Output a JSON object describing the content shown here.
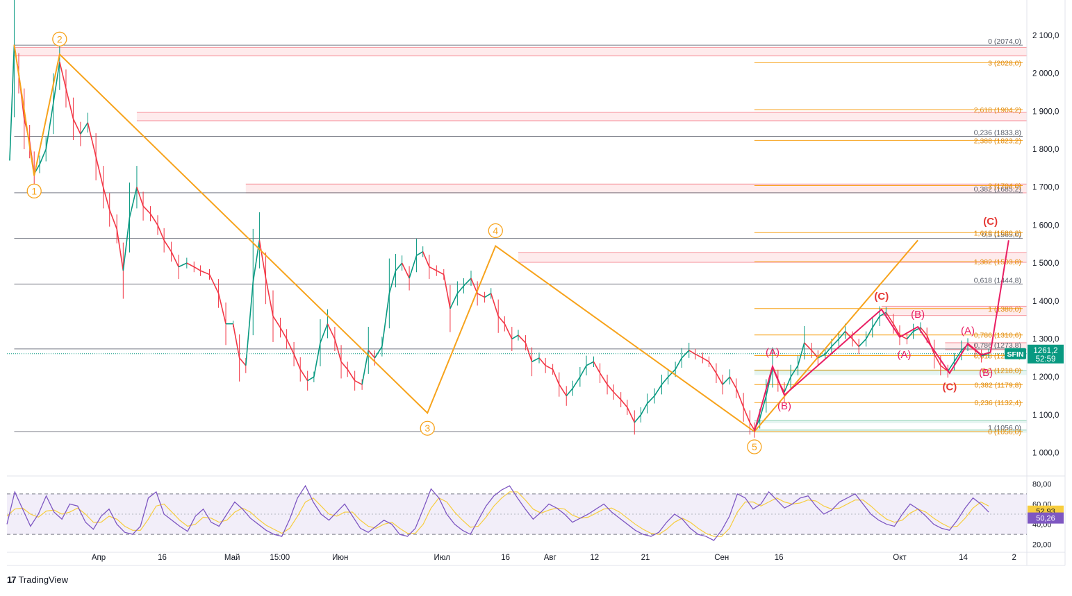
{
  "chart_data": {
    "type": "line",
    "symbol": "SFIN",
    "last_price": "1261,2",
    "countdown": "52:59",
    "price_axis": {
      "ylim": [
        950,
        2120
      ],
      "ticks": [
        "2 100,0",
        "2 000,0",
        "1 900,0",
        "1 800,0",
        "1 700,0",
        "1 600,0",
        "1 500,0",
        "1 400,0",
        "1 300,0",
        "1 200,0",
        "1 100,0",
        "1 000,0"
      ],
      "tick_values": [
        2100,
        2000,
        1900,
        1800,
        1700,
        1600,
        1500,
        1400,
        1300,
        1200,
        1100,
        1000
      ]
    },
    "time_axis": {
      "range": [
        0,
        100
      ],
      "labels": [
        "Апр",
        "16",
        "Май",
        "15:00",
        "Июн",
        "Июл",
        "16",
        "Авг",
        "12",
        "21",
        "Сен",
        "16",
        "Окт",
        "14",
        "2"
      ],
      "positions": [
        14,
        24,
        35,
        42.5,
        52,
        68,
        78,
        85,
        92,
        100,
        112,
        121,
        140,
        150,
        158
      ]
    },
    "elliott_primary": {
      "color": "#f7a31c",
      "points": [
        [
          0.5,
          2075
        ],
        [
          2.7,
          1730
        ],
        [
          5.5,
          2050
        ],
        [
          46,
          1105
        ],
        [
          53.5,
          1545
        ],
        [
          82,
          1056
        ],
        [
          100,
          1560
        ]
      ],
      "labels": [
        {
          "text": "1",
          "t": 2.7,
          "p": 1730,
          "pos": "below"
        },
        {
          "text": "2",
          "t": 5.5,
          "p": 2050,
          "pos": "above"
        },
        {
          "text": "3",
          "t": 46,
          "p": 1105,
          "pos": "below"
        },
        {
          "text": "4",
          "t": 53.5,
          "p": 1545,
          "pos": "above"
        },
        {
          "text": "5",
          "t": 82,
          "p": 1056,
          "pos": "below"
        }
      ]
    },
    "elliott_secondary": {
      "color": "#e91e63",
      "points": [
        [
          82,
          1056
        ],
        [
          84,
          1228
        ],
        [
          85.3,
          1152
        ],
        [
          96,
          1378
        ],
        [
          98,
          1305
        ],
        [
          100,
          1332
        ],
        [
          103.5,
          1210
        ],
        [
          105.5,
          1288
        ],
        [
          107,
          1258
        ],
        [
          108,
          1265
        ],
        [
          110,
          1560
        ]
      ],
      "labels": [
        {
          "text": "(A)",
          "t": 84,
          "p": 1245,
          "pos": "above"
        },
        {
          "text": "(B)",
          "t": 85.3,
          "p": 1140,
          "pos": "below"
        },
        {
          "text": "(A)",
          "t": 98.5,
          "p": 1275,
          "pos": "below"
        },
        {
          "text": "(B)",
          "t": 100,
          "p": 1345,
          "pos": "above"
        },
        {
          "text": "(A)",
          "t": 105.5,
          "p": 1302,
          "pos": "above"
        },
        {
          "text": "(B)",
          "t": 107.5,
          "p": 1228,
          "pos": "below"
        },
        {
          "text": "(C)",
          "t": 96,
          "p": 1392,
          "pos": "above"
        },
        {
          "text": "(C)",
          "t": 103.5,
          "p": 1190,
          "pos": "below"
        },
        {
          "text": "(C)",
          "t": 108,
          "p": 1590,
          "pos": "above"
        }
      ]
    },
    "fib_retracement": {
      "color": "#787b86",
      "levels": [
        {
          "label": "0 (2074,0)",
          "value": 2074.0
        },
        {
          "label": "0,236 (1833,8)",
          "value": 1833.8
        },
        {
          "label": "0,382 (1685,2)",
          "value": 1685.2
        },
        {
          "label": "0,5 (1565,0)",
          "value": 1565.0
        },
        {
          "label": "0,618 (1444,8)",
          "value": 1444.8
        },
        {
          "label": "0,786 (1273,8)",
          "value": 1273.8
        },
        {
          "label": "1 (1056,0)",
          "value": 1056.0
        }
      ]
    },
    "fib_extension": {
      "color": "#f7a31c",
      "levels": [
        {
          "label": "3 (2028,0)",
          "value": 2028.0
        },
        {
          "label": "2,618 (1904,2)",
          "value": 1904.2
        },
        {
          "label": "2,388 (1823,2)",
          "value": 1823.2
        },
        {
          "label": "2 (1704,0)",
          "value": 1704.0
        },
        {
          "label": "1,618 (1580,2)",
          "value": 1580.2
        },
        {
          "label": "1,382 (1503,8)",
          "value": 1503.8
        },
        {
          "label": "1 (1380,0)",
          "value": 1380.0
        },
        {
          "label": "0,786 (1310,6)",
          "value": 1310.6
        },
        {
          "label": "0,618 (1256,2)",
          "value": 1256.2
        },
        {
          "label": "0,5 (1218,0)",
          "value": 1218.0
        },
        {
          "label": "0,382 (1179,8)",
          "value": 1179.8
        },
        {
          "label": "0,236 (1132,4)",
          "value": 1132.4
        },
        {
          "label": "0 (1056,0)",
          "value": 1056.0
        }
      ]
    },
    "resistance_zones": [
      {
        "from": 2046,
        "to": 2068,
        "t_start": 0.5
      },
      {
        "from": 1875,
        "to": 1897,
        "t_start": 14
      },
      {
        "from": 1685,
        "to": 1708,
        "t_start": 26
      },
      {
        "from": 1502,
        "to": 1528,
        "t_start": 56
      },
      {
        "from": 1362,
        "to": 1386,
        "t_start": 96
      },
      {
        "from": 1272,
        "to": 1290,
        "t_start": 103
      }
    ],
    "support_zones": [
      {
        "from": 1205,
        "to": 1217,
        "t_start": 82
      },
      {
        "from": 1078,
        "to": 1085,
        "t_start": 82
      },
      {
        "from": 1053,
        "to": 1060,
        "t_start": 82
      }
    ],
    "price_path": [
      [
        0,
        1770
      ],
      [
        0.5,
        2075
      ],
      [
        1,
        2000
      ],
      [
        1.6,
        1880
      ],
      [
        2.2,
        1820
      ],
      [
        2.7,
        1735
      ],
      [
        3.3,
        1760
      ],
      [
        4,
        1800
      ],
      [
        4.8,
        1920
      ],
      [
        5.5,
        2030
      ],
      [
        6.2,
        1960
      ],
      [
        7,
        1880
      ],
      [
        7.8,
        1840
      ],
      [
        8.6,
        1870
      ],
      [
        9.5,
        1780
      ],
      [
        10.3,
        1700
      ],
      [
        11,
        1640
      ],
      [
        11.8,
        1590
      ],
      [
        12.5,
        1480
      ],
      [
        13.2,
        1620
      ],
      [
        14,
        1700
      ],
      [
        14.7,
        1650
      ],
      [
        15.5,
        1630
      ],
      [
        16.3,
        1600
      ],
      [
        17,
        1560
      ],
      [
        17.8,
        1530
      ],
      [
        18.6,
        1490
      ],
      [
        19.5,
        1500
      ],
      [
        20.3,
        1490
      ],
      [
        21,
        1480
      ],
      [
        22,
        1470
      ],
      [
        23,
        1420
      ],
      [
        23.8,
        1340
      ],
      [
        24.6,
        1340
      ],
      [
        25.3,
        1250
      ],
      [
        26,
        1230
      ],
      [
        26.8,
        1450
      ],
      [
        27.5,
        1560
      ],
      [
        28.2,
        1460
      ],
      [
        29,
        1360
      ],
      [
        29.8,
        1330
      ],
      [
        30.5,
        1300
      ],
      [
        31.3,
        1260
      ],
      [
        32,
        1220
      ],
      [
        32.8,
        1190
      ],
      [
        33.5,
        1200
      ],
      [
        34.2,
        1290
      ],
      [
        35,
        1340
      ],
      [
        35.8,
        1300
      ],
      [
        36.5,
        1240
      ],
      [
        37.2,
        1220
      ],
      [
        38,
        1190
      ],
      [
        38.8,
        1180
      ],
      [
        39.5,
        1270
      ],
      [
        40.2,
        1250
      ],
      [
        41,
        1280
      ],
      [
        41.8,
        1420
      ],
      [
        42.5,
        1480
      ],
      [
        43.2,
        1500
      ],
      [
        44,
        1460
      ],
      [
        44.8,
        1520
      ],
      [
        45.5,
        1530
      ],
      [
        46.2,
        1490
      ],
      [
        47,
        1480
      ],
      [
        47.8,
        1470
      ],
      [
        48.5,
        1380
      ],
      [
        49.3,
        1420
      ],
      [
        50,
        1440
      ],
      [
        50.8,
        1460
      ],
      [
        51.5,
        1420
      ],
      [
        52.3,
        1410
      ],
      [
        53,
        1420
      ],
      [
        53.8,
        1360
      ],
      [
        54.5,
        1340
      ],
      [
        55.3,
        1300
      ],
      [
        56,
        1310
      ],
      [
        56.8,
        1290
      ],
      [
        57.5,
        1240
      ],
      [
        58.3,
        1250
      ],
      [
        59,
        1230
      ],
      [
        59.8,
        1220
      ],
      [
        60.5,
        1180
      ],
      [
        61.3,
        1150
      ],
      [
        62,
        1170
      ],
      [
        62.8,
        1200
      ],
      [
        63.5,
        1230
      ],
      [
        64.3,
        1240
      ],
      [
        65,
        1210
      ],
      [
        65.8,
        1180
      ],
      [
        66.5,
        1160
      ],
      [
        67.3,
        1140
      ],
      [
        68,
        1120
      ],
      [
        68.8,
        1080
      ],
      [
        69.5,
        1100
      ],
      [
        70.2,
        1130
      ],
      [
        71,
        1150
      ],
      [
        71.8,
        1180
      ],
      [
        72.5,
        1200
      ],
      [
        73.3,
        1220
      ],
      [
        74,
        1250
      ],
      [
        74.8,
        1270
      ],
      [
        75.5,
        1260
      ],
      [
        76.3,
        1250
      ],
      [
        77,
        1240
      ],
      [
        77.8,
        1210
      ],
      [
        78.5,
        1180
      ],
      [
        79.3,
        1200
      ],
      [
        80,
        1170
      ],
      [
        80.8,
        1120
      ],
      [
        81.5,
        1080
      ],
      [
        82,
        1060
      ],
      [
        82.6,
        1090
      ],
      [
        83.3,
        1150
      ],
      [
        84,
        1225
      ],
      [
        84.6,
        1190
      ],
      [
        85.3,
        1160
      ],
      [
        86,
        1200
      ],
      [
        86.8,
        1230
      ],
      [
        87.5,
        1290
      ],
      [
        88.3,
        1270
      ],
      [
        89,
        1250
      ],
      [
        89.8,
        1260
      ],
      [
        90.5,
        1280
      ],
      [
        91.3,
        1300
      ],
      [
        92,
        1320
      ],
      [
        92.8,
        1300
      ],
      [
        93.5,
        1280
      ],
      [
        94.3,
        1300
      ],
      [
        95,
        1330
      ],
      [
        95.8,
        1360
      ],
      [
        96.5,
        1370
      ],
      [
        97.3,
        1340
      ],
      [
        98,
        1310
      ],
      [
        98.8,
        1300
      ],
      [
        99.5,
        1320
      ],
      [
        100.3,
        1330
      ],
      [
        101,
        1310
      ],
      [
        101.8,
        1260
      ],
      [
        102.5,
        1230
      ],
      [
        103.3,
        1215
      ],
      [
        104,
        1240
      ],
      [
        104.8,
        1270
      ],
      [
        105.5,
        1285
      ],
      [
        106.3,
        1270
      ],
      [
        107,
        1255
      ],
      [
        107.8,
        1262
      ]
    ],
    "rsi": {
      "ylim": [
        15,
        85
      ],
      "ticks": [
        "80,00",
        "60,00",
        "40,00",
        "20,00"
      ],
      "tick_values": [
        80,
        60,
        40,
        20
      ],
      "band": [
        30,
        70
      ],
      "rsi_value": "50,26",
      "rsi_ma_value": "52,93",
      "rsi_color": "#7e57c2",
      "rsi_ma_color": "#f7cd3f",
      "rsi_series": [
        40,
        72,
        55,
        38,
        50,
        68,
        52,
        45,
        60,
        58,
        42,
        35,
        48,
        55,
        40,
        32,
        30,
        38,
        66,
        72,
        50,
        44,
        38,
        33,
        48,
        55,
        42,
        38,
        50,
        62,
        55,
        46,
        40,
        34,
        30,
        28,
        45,
        66,
        78,
        62,
        50,
        44,
        52,
        60,
        48,
        36,
        32,
        38,
        44,
        40,
        30,
        28,
        36,
        55,
        75,
        66,
        50,
        40,
        34,
        30,
        44,
        58,
        68,
        74,
        78,
        66,
        55,
        45,
        52,
        60,
        56,
        50,
        42,
        46,
        50,
        55,
        60,
        52,
        46,
        40,
        34,
        30,
        28,
        32,
        42,
        50,
        45,
        36,
        30,
        28,
        24,
        34,
        48,
        70,
        66,
        55,
        60,
        72,
        64,
        56,
        60,
        66,
        68,
        58,
        50,
        54,
        62,
        66,
        70,
        60,
        50,
        44,
        40,
        38,
        50,
        60,
        55,
        48,
        40,
        36,
        34,
        44,
        56,
        66,
        60,
        52
      ],
      "rsi_ma_series": [
        48,
        55,
        56,
        50,
        47,
        53,
        54,
        50,
        52,
        56,
        50,
        42,
        42,
        48,
        45,
        38,
        34,
        34,
        45,
        58,
        60,
        52,
        44,
        38,
        40,
        47,
        46,
        42,
        44,
        52,
        56,
        52,
        45,
        39,
        35,
        31,
        36,
        48,
        62,
        66,
        58,
        50,
        48,
        52,
        52,
        44,
        38,
        36,
        40,
        42,
        36,
        31,
        31,
        40,
        56,
        66,
        62,
        52,
        44,
        37,
        38,
        47,
        58,
        66,
        72,
        72,
        64,
        55,
        51,
        54,
        56,
        55,
        49,
        46,
        47,
        51,
        55,
        56,
        52,
        46,
        40,
        35,
        31,
        30,
        35,
        42,
        46,
        42,
        36,
        31,
        28,
        28,
        36,
        52,
        62,
        62,
        58,
        62,
        66,
        62,
        60,
        61,
        64,
        63,
        58,
        55,
        56,
        60,
        64,
        64,
        58,
        51,
        45,
        42,
        44,
        51,
        55,
        52,
        46,
        41,
        37,
        38,
        46,
        56,
        62,
        58
      ]
    }
  },
  "branding": {
    "logo": "17",
    "name": "TradingView"
  }
}
